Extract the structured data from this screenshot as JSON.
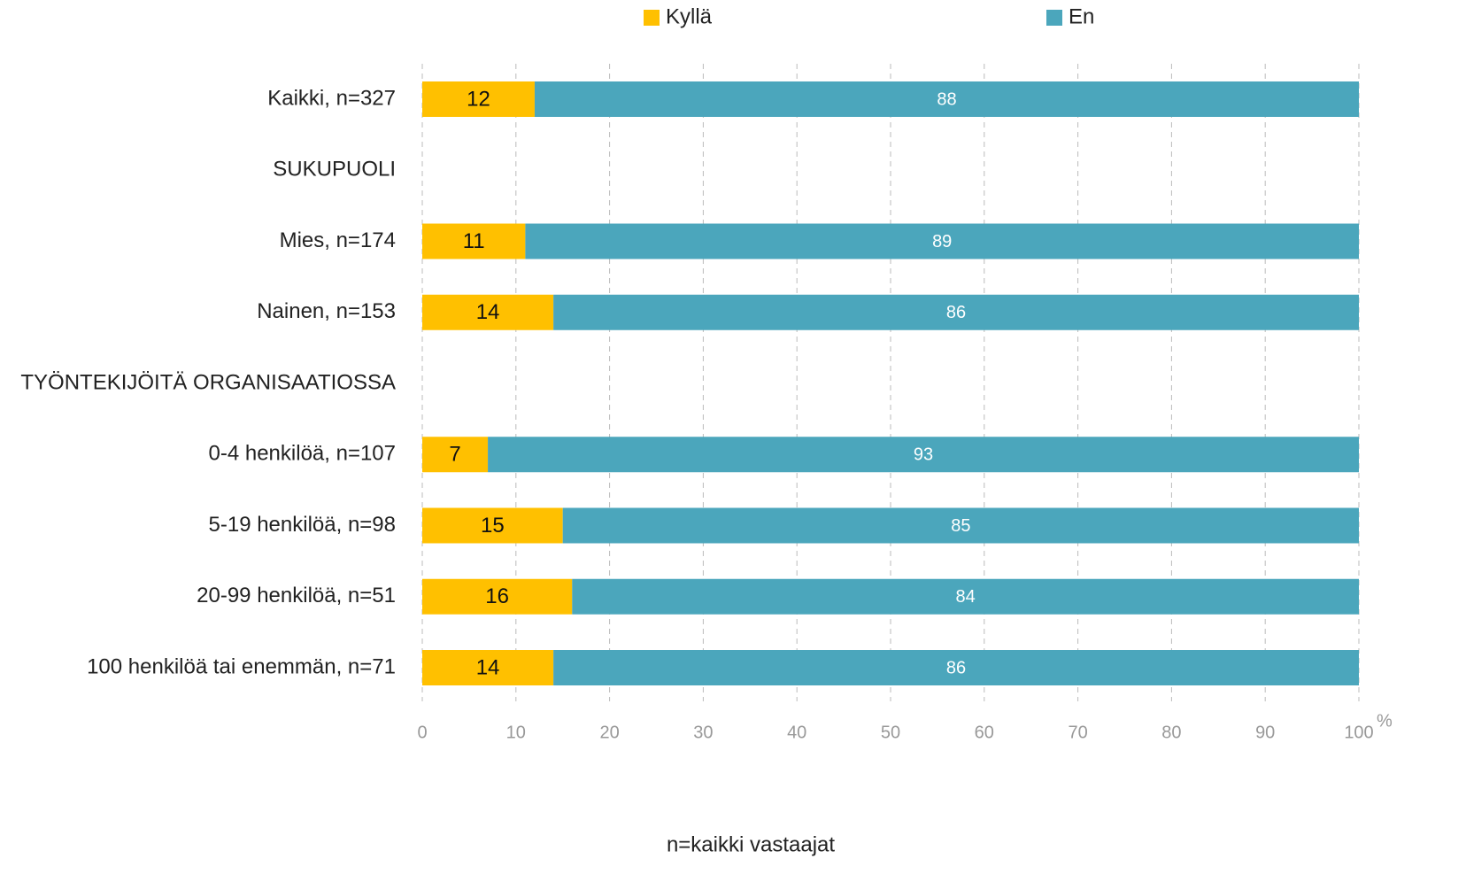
{
  "chart_data": {
    "type": "stacked-bar-horizontal",
    "categories": [
      "Kaikki, n=327",
      "SUKUPUOLI",
      "Mies, n=174",
      "Nainen, n=153",
      "TYÖNTEKIJÖITÄ ORGANISAATIOSSA",
      "0-4 henkilöä, n=107",
      "5-19 henkilöä, n=98",
      "20-99 henkilöä, n=51",
      "100 henkilöä tai enemmän, n=71"
    ],
    "series": [
      {
        "name": "Kyllä",
        "color": "#ffc000",
        "values": [
          12,
          null,
          11,
          14,
          null,
          7,
          15,
          16,
          14
        ]
      },
      {
        "name": "En",
        "color": "#4ba6bc",
        "values": [
          88,
          null,
          89,
          86,
          null,
          93,
          85,
          84,
          86
        ]
      }
    ],
    "xlim": [
      0,
      100
    ],
    "xticks": [
      0,
      10,
      20,
      30,
      40,
      50,
      60,
      70,
      80,
      90,
      100
    ],
    "x_unit": "%",
    "x_label": "n=kaikki vastaajat",
    "grid": true,
    "legend": "top"
  }
}
